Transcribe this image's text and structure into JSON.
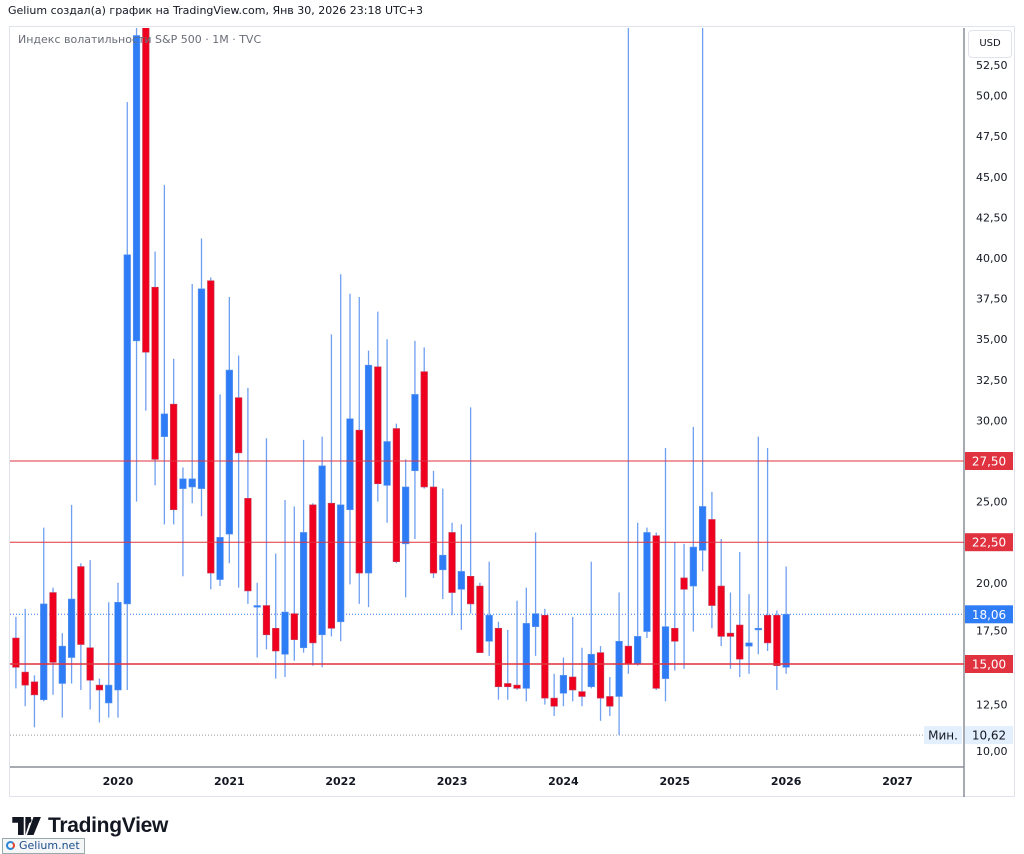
{
  "header": {
    "caption": "Gelium создал(а) график на TradingView.com, Янв 30, 2026 23:18 UTC+3"
  },
  "legend": {
    "symbol": "Индекс волатильности S&P 500 · 1M · TVC"
  },
  "currency_button": "USD",
  "branding": {
    "logo": "TradingView",
    "watermark": "Gelium.net"
  },
  "colors": {
    "up": "#2e7cf6",
    "down": "#f0001f",
    "wick": "#6f9ff0",
    "hline": "#e0323f",
    "last_price": "#2e7cf6",
    "min_label_bg": "#e3effd"
  },
  "chart_data": {
    "type": "candlestick",
    "interval": "1M",
    "title": "Индекс волатильности S&P 500 · 1M · TVC",
    "ylim": [
      9.4,
      54.1
    ],
    "y_ticks": [
      "10,00",
      "12,50",
      "15,00",
      "17,50",
      "20,00",
      "22,50",
      "25,00",
      "27,50",
      "30,00",
      "32,50",
      "35,00",
      "37,50",
      "40,00",
      "42,50",
      "45,00",
      "47,50",
      "50,00",
      "52,50"
    ],
    "x_ticks": [
      "2020",
      "2021",
      "2022",
      "2023",
      "2024",
      "2025",
      "2026",
      "2027"
    ],
    "horizontal_lines": [
      {
        "value": 27.5,
        "label": "27,50"
      },
      {
        "value": 22.5,
        "label": "22,50"
      },
      {
        "value": 15.0,
        "label": "15,00"
      }
    ],
    "last_price": {
      "value": 18.06,
      "label": "18,06"
    },
    "min_marker": {
      "value": 10.62,
      "label": "10,62",
      "caption": "Мин."
    },
    "candles_columns": [
      "month",
      "open",
      "high",
      "low",
      "close"
    ],
    "candles": [
      [
        "2019-02",
        16.6,
        17.9,
        13.5,
        14.8
      ],
      [
        "2019-03",
        14.5,
        18.4,
        12.4,
        13.7
      ],
      [
        "2019-04",
        13.9,
        14.3,
        11.1,
        13.1
      ],
      [
        "2019-05",
        12.8,
        23.4,
        12.7,
        18.7
      ],
      [
        "2019-06",
        19.4,
        19.7,
        13.1,
        15.1
      ],
      [
        "2019-07",
        13.8,
        16.9,
        11.7,
        16.1
      ],
      [
        "2019-08",
        15.4,
        24.8,
        13.8,
        19.0
      ],
      [
        "2019-09",
        21.0,
        21.2,
        13.4,
        16.2
      ],
      [
        "2019-10",
        16.0,
        21.4,
        12.2,
        14.0
      ],
      [
        "2019-11",
        13.7,
        14.1,
        11.4,
        13.4
      ],
      [
        "2019-12",
        12.6,
        18.8,
        11.7,
        13.7
      ],
      [
        "2020-01",
        13.4,
        20.0,
        11.7,
        18.8
      ],
      [
        "2020-02",
        18.7,
        49.6,
        13.4,
        40.2
      ],
      [
        "2020-03",
        34.9,
        85.5,
        25.0,
        53.7
      ],
      [
        "2020-04",
        57.0,
        60.0,
        30.6,
        34.2
      ],
      [
        "2020-05",
        38.2,
        40.4,
        26.0,
        27.6
      ],
      [
        "2020-06",
        29.0,
        44.5,
        23.6,
        30.4
      ],
      [
        "2020-07",
        31.0,
        33.8,
        23.6,
        24.5
      ],
      [
        "2020-08",
        25.8,
        27.1,
        20.4,
        26.4
      ],
      [
        "2020-09",
        25.9,
        38.4,
        24.9,
        26.4
      ],
      [
        "2020-10",
        25.8,
        41.2,
        24.1,
        38.1
      ],
      [
        "2020-11",
        38.6,
        38.8,
        19.6,
        20.6
      ],
      [
        "2020-12",
        20.2,
        31.6,
        19.8,
        22.8
      ],
      [
        "2021-01",
        23.0,
        37.6,
        21.2,
        33.1
      ],
      [
        "2021-02",
        31.4,
        34.0,
        19.7,
        28.0
      ],
      [
        "2021-03",
        25.2,
        32.0,
        18.7,
        19.5
      ],
      [
        "2021-04",
        18.5,
        20.0,
        15.4,
        18.6
      ],
      [
        "2021-05",
        18.6,
        28.9,
        15.9,
        16.8
      ],
      [
        "2021-06",
        17.2,
        21.8,
        14.1,
        15.8
      ],
      [
        "2021-07",
        15.6,
        25.1,
        14.2,
        18.2
      ],
      [
        "2021-08",
        18.1,
        24.7,
        15.2,
        16.5
      ],
      [
        "2021-09",
        16.0,
        28.8,
        15.7,
        23.1
      ],
      [
        "2021-10",
        24.8,
        24.9,
        14.9,
        16.3
      ],
      [
        "2021-11",
        16.8,
        29.0,
        14.8,
        27.2
      ],
      [
        "2021-12",
        24.9,
        35.3,
        16.7,
        17.2
      ],
      [
        "2022-01",
        17.6,
        39.0,
        16.4,
        24.8
      ],
      [
        "2022-02",
        24.5,
        37.8,
        19.9,
        30.1
      ],
      [
        "2022-03",
        29.4,
        37.6,
        18.7,
        20.6
      ],
      [
        "2022-04",
        20.6,
        34.3,
        18.5,
        33.4
      ],
      [
        "2022-05",
        33.3,
        36.7,
        25.0,
        26.1
      ],
      [
        "2022-06",
        26.0,
        35.0,
        23.7,
        28.7
      ],
      [
        "2022-07",
        29.5,
        29.8,
        21.2,
        21.3
      ],
      [
        "2022-08",
        22.4,
        27.6,
        19.1,
        25.9
      ],
      [
        "2022-09",
        26.9,
        34.9,
        22.7,
        31.6
      ],
      [
        "2022-10",
        33.0,
        34.5,
        25.8,
        25.9
      ],
      [
        "2022-11",
        25.9,
        26.9,
        20.3,
        20.6
      ],
      [
        "2022-12",
        20.8,
        25.8,
        19.0,
        21.7
      ],
      [
        "2023-01",
        23.1,
        23.7,
        18.0,
        19.4
      ],
      [
        "2023-02",
        19.6,
        23.6,
        17.1,
        20.7
      ],
      [
        "2023-03",
        20.4,
        30.8,
        18.1,
        18.7
      ],
      [
        "2023-04",
        19.8,
        20.0,
        15.7,
        15.7
      ],
      [
        "2023-05",
        16.4,
        21.3,
        15.5,
        18.0
      ],
      [
        "2023-06",
        17.2,
        17.6,
        12.8,
        13.6
      ],
      [
        "2023-07",
        13.8,
        17.1,
        12.8,
        13.6
      ],
      [
        "2023-08",
        13.7,
        18.9,
        13.4,
        13.5
      ],
      [
        "2023-09",
        13.5,
        19.7,
        12.7,
        17.5
      ],
      [
        "2023-10",
        17.3,
        23.1,
        15.5,
        18.1
      ],
      [
        "2023-11",
        18.0,
        18.4,
        12.5,
        12.9
      ],
      [
        "2023-12",
        12.9,
        14.4,
        11.8,
        12.4
      ],
      [
        "2024-01",
        13.2,
        15.4,
        12.4,
        14.3
      ],
      [
        "2024-02",
        14.2,
        17.9,
        12.7,
        13.4
      ],
      [
        "2024-03",
        13.3,
        16.0,
        12.4,
        13.0
      ],
      [
        "2024-04",
        13.6,
        21.3,
        13.5,
        15.6
      ],
      [
        "2024-05",
        15.7,
        16.1,
        11.5,
        12.9
      ],
      [
        "2024-06",
        13.0,
        14.2,
        11.8,
        12.4
      ],
      [
        "2024-07",
        13.0,
        19.4,
        10.62,
        16.4
      ],
      [
        "2024-08",
        16.1,
        65.7,
        14.4,
        15.0
      ],
      [
        "2024-09",
        15.0,
        23.7,
        14.9,
        16.7
      ],
      [
        "2024-10",
        17.0,
        23.4,
        16.6,
        23.1
      ],
      [
        "2024-11",
        22.9,
        23.1,
        13.4,
        13.5
      ],
      [
        "2024-12",
        14.1,
        28.3,
        12.7,
        17.3
      ],
      [
        "2025-01",
        17.2,
        22.5,
        14.6,
        16.4
      ],
      [
        "2025-02",
        20.3,
        22.4,
        14.7,
        19.6
      ],
      [
        "2025-03",
        19.8,
        29.6,
        17.0,
        22.2
      ],
      [
        "2025-04",
        22.0,
        60.1,
        20.7,
        24.7
      ],
      [
        "2025-05",
        23.9,
        25.6,
        17.2,
        18.6
      ],
      [
        "2025-06",
        19.8,
        22.7,
        16.1,
        16.7
      ],
      [
        "2025-07",
        16.9,
        19.4,
        14.7,
        16.7
      ],
      [
        "2025-08",
        17.4,
        21.9,
        14.2,
        15.3
      ],
      [
        "2025-09",
        16.1,
        19.3,
        14.4,
        16.3
      ],
      [
        "2025-10",
        17.1,
        29.0,
        15.6,
        17.2
      ],
      [
        "2025-11",
        18.0,
        28.3,
        15.8,
        16.3
      ],
      [
        "2025-12",
        18.0,
        18.3,
        13.4,
        14.9
      ],
      [
        "2026-01",
        14.8,
        21.0,
        14.4,
        18.06
      ]
    ]
  }
}
